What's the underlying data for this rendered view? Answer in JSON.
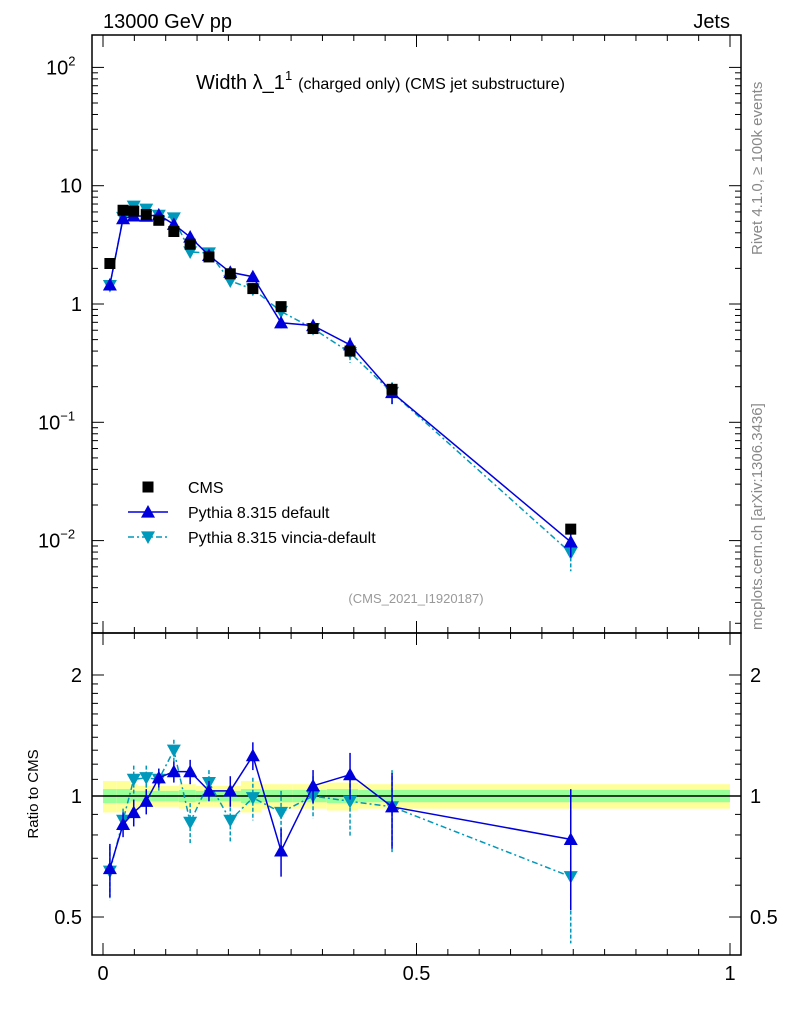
{
  "chart_data": {
    "type": "line",
    "header_left": "13000 GeV pp",
    "header_right": "Jets",
    "title": "Width λ_1",
    "title_sup": "1",
    "title_suffix": "(charged only) (CMS jet substructure)",
    "side_label_top": "Rivet 4.1.0, ≥ 100k events",
    "side_label_bottom": "mcplots.cern.ch [arXiv:1306.3436]",
    "analysis_tag": "(CMS_2021_I1920187)",
    "ratio_ylabel": "Ratio to CMS",
    "xlim": [
      0,
      1
    ],
    "ylim": [
      0.002,
      200
    ],
    "ratio_ylim": [
      0.43,
      2.3
    ],
    "main_yticks": [
      {
        "v": 100,
        "b": "10",
        "e": "2"
      },
      {
        "v": 10,
        "b": "10",
        "e": ""
      },
      {
        "v": 1,
        "b": "1",
        "e": ""
      },
      {
        "v": 0.1,
        "b": "10",
        "e": "−1"
      },
      {
        "v": 0.01,
        "b": "10",
        "e": "−2"
      }
    ],
    "ratio_yticks": [
      {
        "v": 0.5,
        "l": "0.5"
      },
      {
        "v": 1,
        "l": "1"
      },
      {
        "v": 2,
        "l": "2"
      }
    ],
    "xticks": [
      {
        "v": 0,
        "l": "0"
      },
      {
        "v": 0.5,
        "l": "0.5"
      },
      {
        "v": 1,
        "l": "1"
      }
    ],
    "x": [
      0.011,
      0.032,
      0.049,
      0.069,
      0.089,
      0.113,
      0.139,
      0.169,
      0.203,
      0.239,
      0.284,
      0.335,
      0.394,
      0.461,
      0.746
    ],
    "bin_edges": [
      0,
      0.022,
      0.044,
      0.055,
      0.077,
      0.099,
      0.121,
      0.148,
      0.176,
      0.22,
      0.253,
      0.302,
      0.357,
      0.407,
      0.5,
      1.0
    ],
    "band_total": [
      0.09,
      0.09,
      0.07,
      0.06,
      0.06,
      0.06,
      0.07,
      0.06,
      0.06,
      0.09,
      0.07,
      0.07,
      0.08,
      0.07,
      0.07
    ],
    "band_stat": [
      0.04,
      0.04,
      0.03,
      0.03,
      0.03,
      0.03,
      0.035,
      0.03,
      0.03,
      0.04,
      0.035,
      0.035,
      0.04,
      0.035,
      0.035
    ],
    "series": [
      {
        "name": "CMS",
        "marker": "square",
        "color": "#000000",
        "values": [
          2.2,
          6.2,
          6.1,
          5.7,
          5.1,
          4.1,
          3.2,
          2.5,
          1.8,
          1.35,
          0.95,
          0.62,
          0.4,
          0.19,
          0.0125
        ]
      },
      {
        "name": "Pythia 8.315 default",
        "marker": "triangle-up",
        "color": "#0000dd",
        "dash": "",
        "ratio": [
          0.66,
          0.85,
          0.91,
          0.97,
          1.11,
          1.15,
          1.15,
          1.03,
          1.03,
          1.26,
          0.73,
          1.06,
          1.13,
          0.94,
          0.78
        ],
        "ratio_err": [
          0.1,
          0.06,
          0.07,
          0.07,
          0.06,
          0.07,
          0.08,
          0.06,
          0.09,
          0.1,
          0.1,
          0.1,
          0.15,
          0.2,
          0.26
        ]
      },
      {
        "name": "Pythia 8.315 vincia-default",
        "marker": "triangle-down",
        "color": "#0099bb",
        "dash": "6,3,2,3",
        "ratio": [
          0.65,
          0.87,
          1.1,
          1.11,
          1.1,
          1.3,
          0.86,
          1.08,
          0.87,
          0.99,
          0.91,
          1.0,
          0.97,
          0.94,
          0.63
        ],
        "ratio_err": [
          0.1,
          0.06,
          0.09,
          0.08,
          0.07,
          0.08,
          0.1,
          0.08,
          0.1,
          0.12,
          0.12,
          0.12,
          0.18,
          0.22,
          0.3
        ]
      }
    ]
  }
}
